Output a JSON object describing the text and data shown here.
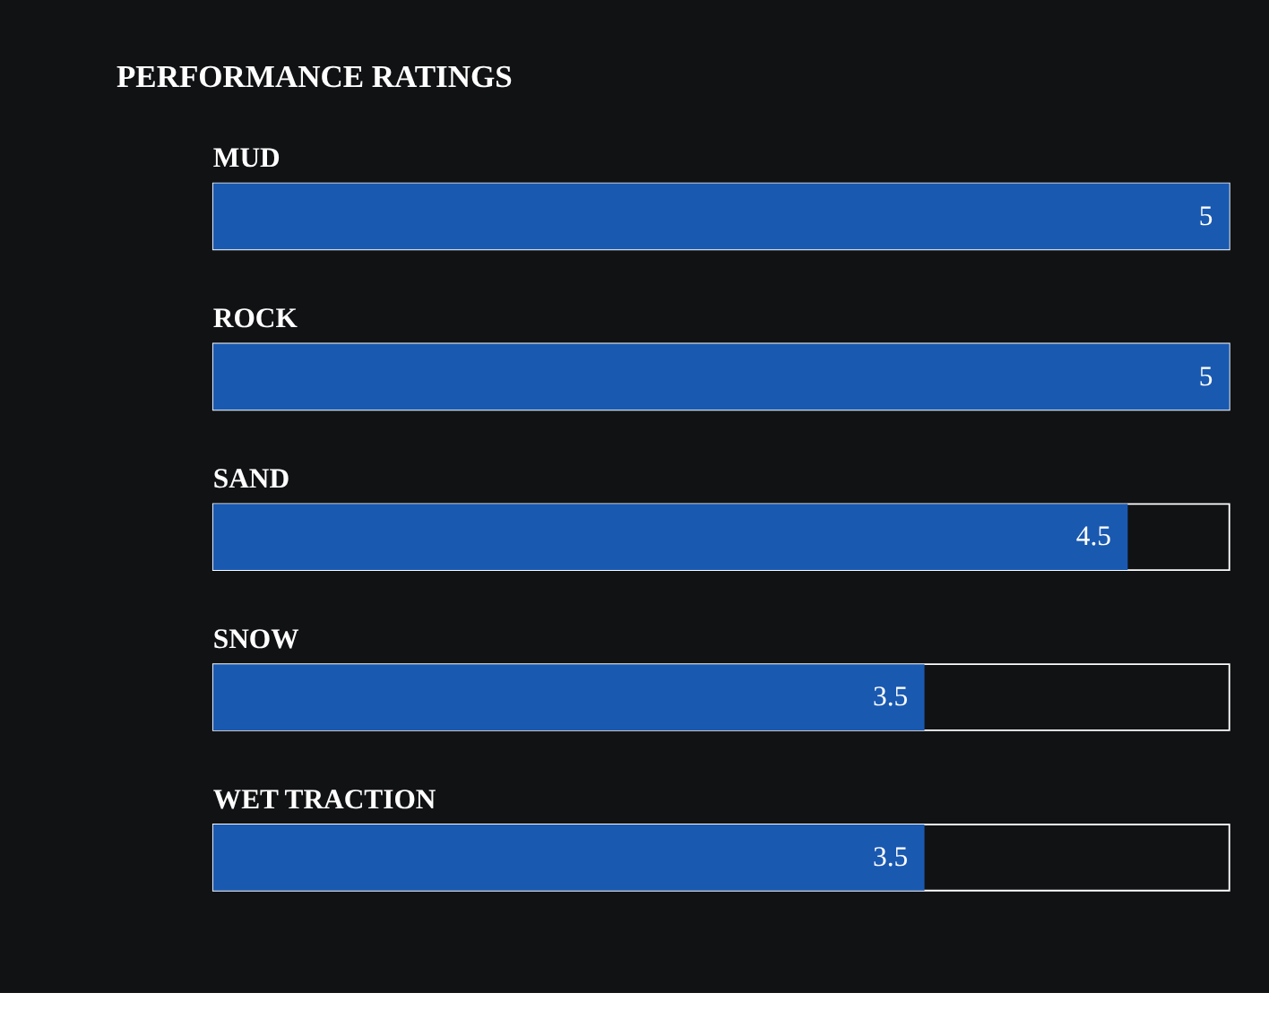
{
  "chart_data": {
    "type": "bar",
    "orientation": "horizontal",
    "title": "PERFORMANCE RATINGS",
    "categories": [
      "MUD",
      "ROCK",
      "SAND",
      "SNOW",
      "WET TRACTION"
    ],
    "values": [
      5,
      5,
      4.5,
      3.5,
      3.5
    ],
    "color": "#1a59b0",
    "xlim": [
      0,
      5
    ],
    "data_labels": true,
    "tick_labels": false,
    "grid": false
  }
}
